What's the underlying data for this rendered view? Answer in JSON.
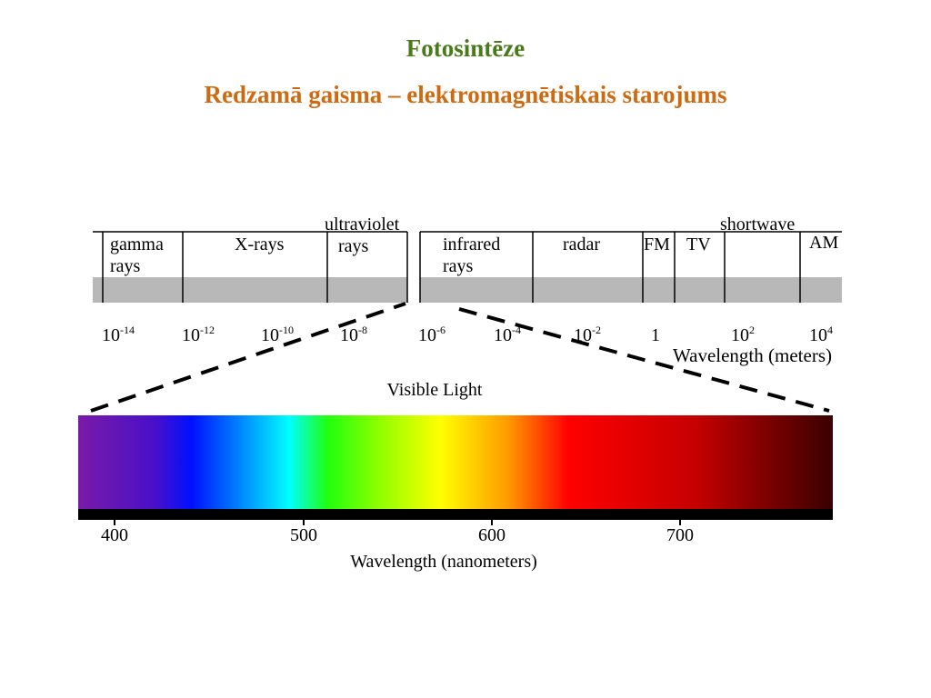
{
  "header": {
    "title": "Fotosintēze",
    "subtitle": "Redzamā gaisma – elektromagnētiskais starojums"
  },
  "spectrum": {
    "bands": [
      {
        "lines": [
          "gamma",
          "rays"
        ]
      },
      {
        "lines": [
          "X-rays"
        ]
      },
      {
        "lines": [
          "ultraviolet",
          "rays"
        ]
      },
      {
        "lines": [
          "infrared",
          "rays"
        ]
      },
      {
        "lines": [
          "radar"
        ]
      },
      {
        "lines": [
          "FM"
        ]
      },
      {
        "lines": [
          "TV"
        ]
      },
      {
        "lines": [
          "shortwave"
        ]
      },
      {
        "lines": [
          "AM"
        ]
      }
    ],
    "scale": [
      {
        "base": "10",
        "exp": "-14"
      },
      {
        "base": "10",
        "exp": "-12"
      },
      {
        "base": "10",
        "exp": "-10"
      },
      {
        "base": "10",
        "exp": "-8"
      },
      {
        "base": "10",
        "exp": "-6"
      },
      {
        "base": "10",
        "exp": "-4"
      },
      {
        "base": "10",
        "exp": "-2"
      },
      {
        "base": "1"
      },
      {
        "base": "10",
        "exp": "2"
      },
      {
        "base": "10",
        "exp": "4"
      }
    ],
    "scale_label": "Wavelength (meters)"
  },
  "visible": {
    "title": "Visible Light",
    "ticks": [
      "400",
      "500",
      "600",
      "700"
    ],
    "axis_label": "Wavelength (nanometers)"
  }
}
